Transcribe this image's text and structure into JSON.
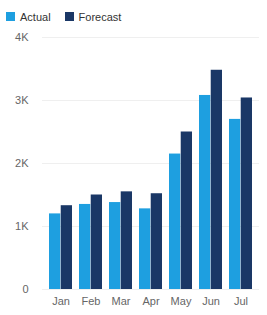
{
  "chart_data": {
    "type": "bar",
    "categories": [
      "Jan",
      "Feb",
      "Mar",
      "Apr",
      "May",
      "Jun",
      "Jul"
    ],
    "series": [
      {
        "name": "Actual",
        "color": "#1e9fe0",
        "values": [
          1200,
          1350,
          1380,
          1280,
          2150,
          3080,
          2700
        ]
      },
      {
        "name": "Forecast",
        "color": "#1a3766",
        "values": [
          1330,
          1500,
          1550,
          1520,
          2500,
          3480,
          3040
        ]
      }
    ],
    "ylim": [
      0,
      4000
    ],
    "yticks": [
      0,
      {
        "value": 1000,
        "label": "1K"
      },
      {
        "value": 2000,
        "label": "2K"
      },
      {
        "value": 3000,
        "label": "3K"
      },
      {
        "value": 4000,
        "label": "4K"
      }
    ],
    "grid": true,
    "legend": "top-left"
  }
}
